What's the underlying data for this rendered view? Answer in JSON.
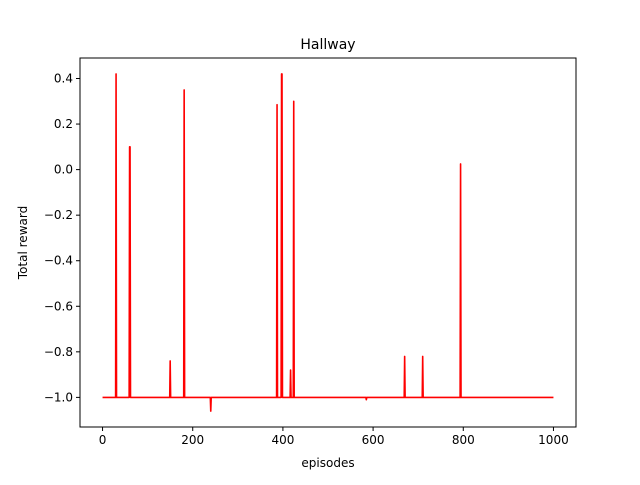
{
  "chart_data": {
    "type": "line",
    "title": "Hallway",
    "xlabel": "episodes",
    "ylabel": "Total reward",
    "xlim": [
      -50,
      1050
    ],
    "ylim": [
      -1.13,
      0.49
    ],
    "xticks": [
      0,
      200,
      400,
      600,
      800,
      1000
    ],
    "yticks": [
      -1.0,
      -0.8,
      -0.6,
      -0.4,
      -0.2,
      0.0,
      0.2,
      0.4
    ],
    "ytick_labels": [
      "−1.0",
      "−0.8",
      "−0.6",
      "−0.4",
      "−0.2",
      "0.0",
      "0.2",
      "0.4"
    ],
    "grid": false,
    "series": [
      {
        "color": "#ff0000",
        "x": [
          0,
          29,
          30,
          31,
          59,
          60,
          61,
          62,
          149,
          150,
          151,
          180,
          181,
          182,
          239,
          240,
          241,
          386,
          387,
          388,
          396,
          397,
          398,
          399,
          416,
          417,
          418,
          423,
          424,
          425,
          584,
          585,
          586,
          669,
          670,
          671,
          709,
          710,
          711,
          793,
          794,
          795,
          1000
        ],
        "y": [
          -1.0,
          -1.0,
          0.42,
          -1.0,
          -1.0,
          0.1,
          0.1,
          -1.0,
          -1.0,
          -0.84,
          -1.0,
          -1.0,
          0.35,
          -1.0,
          -1.0,
          -1.06,
          -1.0,
          -1.0,
          0.285,
          -1.0,
          -1.0,
          0.42,
          0.42,
          -1.0,
          -1.0,
          -0.88,
          -1.0,
          -1.0,
          0.3,
          -1.0,
          -1.0,
          -1.01,
          -1.0,
          -1.0,
          -0.82,
          -1.0,
          -1.0,
          -0.82,
          -1.0,
          -1.0,
          0.025,
          -1.0,
          -1.0
        ]
      }
    ]
  }
}
